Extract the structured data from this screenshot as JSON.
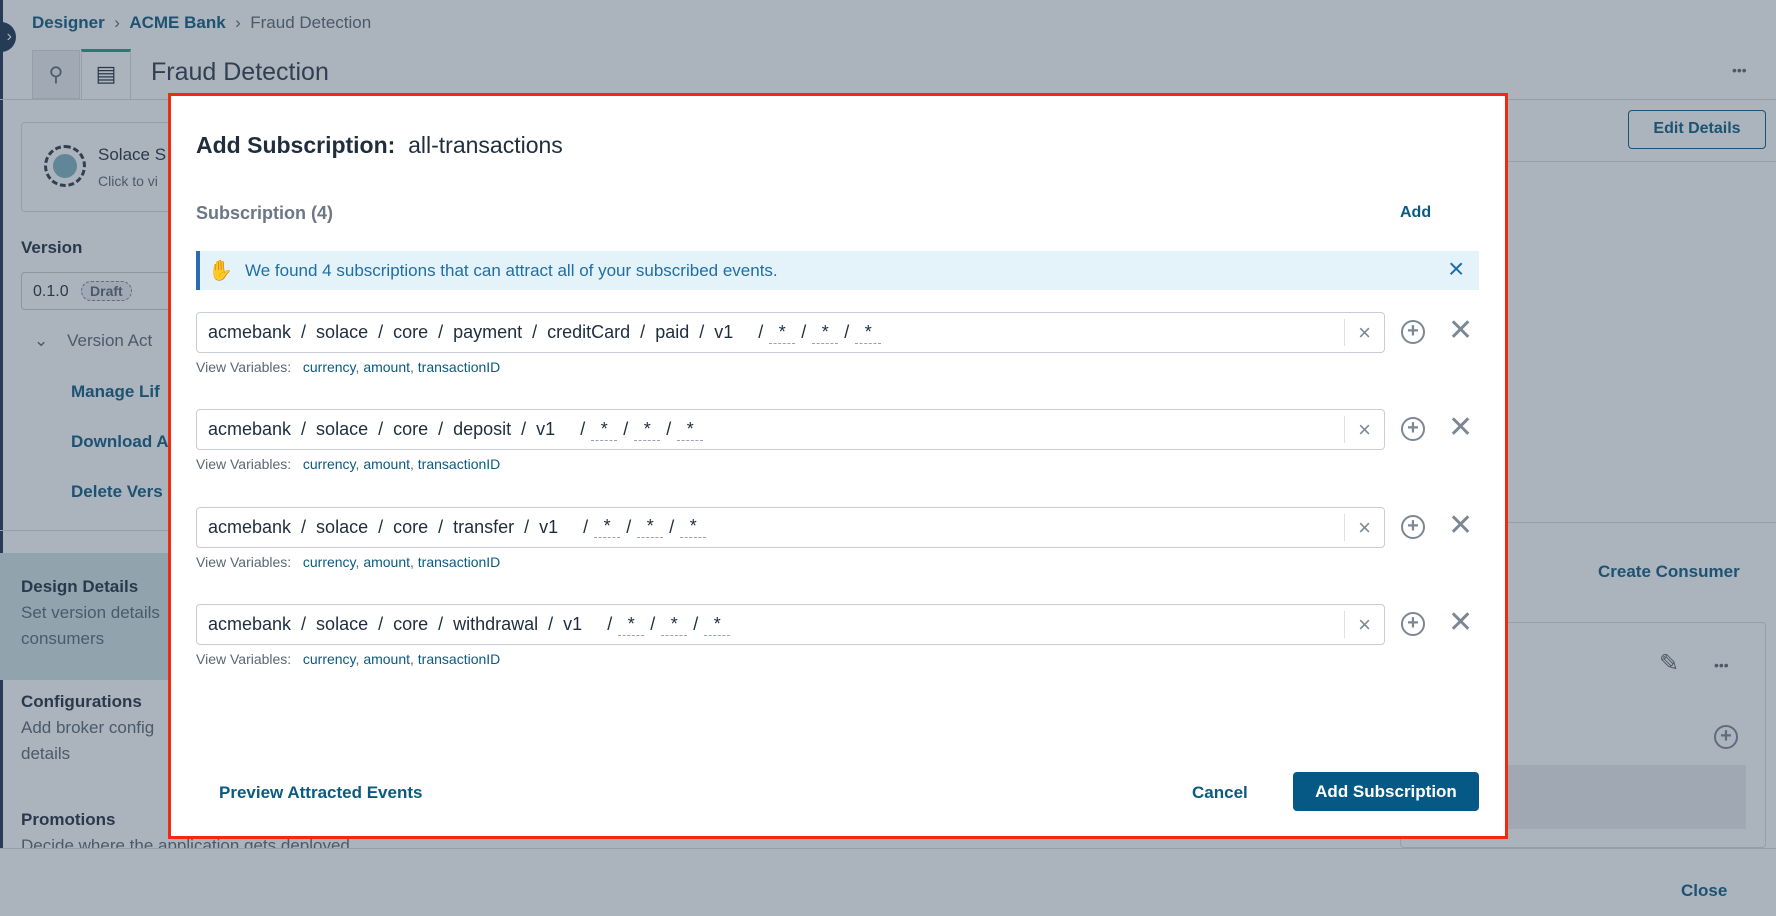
{
  "breadcrumb": [
    "Designer",
    "ACME Bank",
    "Fraud Detection"
  ],
  "page_title": "Fraud Detection",
  "more_label": "•••",
  "edit_details": "Edit Details",
  "solace_card": {
    "title": "Solace S",
    "subtitle": "Click to vi"
  },
  "version": {
    "label": "Version",
    "value": "0.1.0",
    "badge": "Draft",
    "actions_label": "Version Act",
    "actions": [
      "Manage Lif",
      "Download A",
      "Delete Vers"
    ]
  },
  "sections": [
    {
      "title": "Design Details",
      "desc": "Set version details",
      "desc2": "consumers"
    },
    {
      "title": "Configurations",
      "desc": "Add broker config",
      "desc2": "details"
    },
    {
      "title": "Promotions",
      "desc": "Decide where the application gets deployed"
    }
  ],
  "create_consumer": "Create Consumer",
  "close": "Close",
  "modal": {
    "title_prefix": "Add Subscription:",
    "title_name": "all-transactions",
    "section_label": "Subscription (4)",
    "add_label": "Add",
    "banner": "We found 4 subscriptions that can attract all of your subscribed events.",
    "view_vars_label": "View Variables:",
    "subscriptions": [
      {
        "topic": "acmebank  /  solace  /  core  /  payment  /  creditCard  /  paid  /  v1",
        "vars": [
          "*",
          "*",
          "*"
        ],
        "variables": [
          "currency",
          "amount",
          "transactionID"
        ]
      },
      {
        "topic": "acmebank  /  solace  /  core  /  deposit  /  v1",
        "vars": [
          "*",
          "*",
          "*"
        ],
        "variables": [
          "currency",
          "amount",
          "transactionID"
        ]
      },
      {
        "topic": "acmebank  /  solace  /  core  /  transfer  /  v1",
        "vars": [
          "*",
          "*",
          "*"
        ],
        "variables": [
          "currency",
          "amount",
          "transactionID"
        ]
      },
      {
        "topic": "acmebank  /  solace  /  core  /  withdrawal  /  v1",
        "vars": [
          "*",
          "*",
          "*"
        ],
        "variables": [
          "currency",
          "amount",
          "transactionID"
        ]
      }
    ],
    "preview": "Preview Attracted Events",
    "cancel": "Cancel",
    "submit": "Add Subscription"
  },
  "colors": {
    "accent": "#0b5a80",
    "primary_button": "#075985",
    "highlight_border": "#f2290f",
    "banner_bg": "#e4f2fa"
  }
}
